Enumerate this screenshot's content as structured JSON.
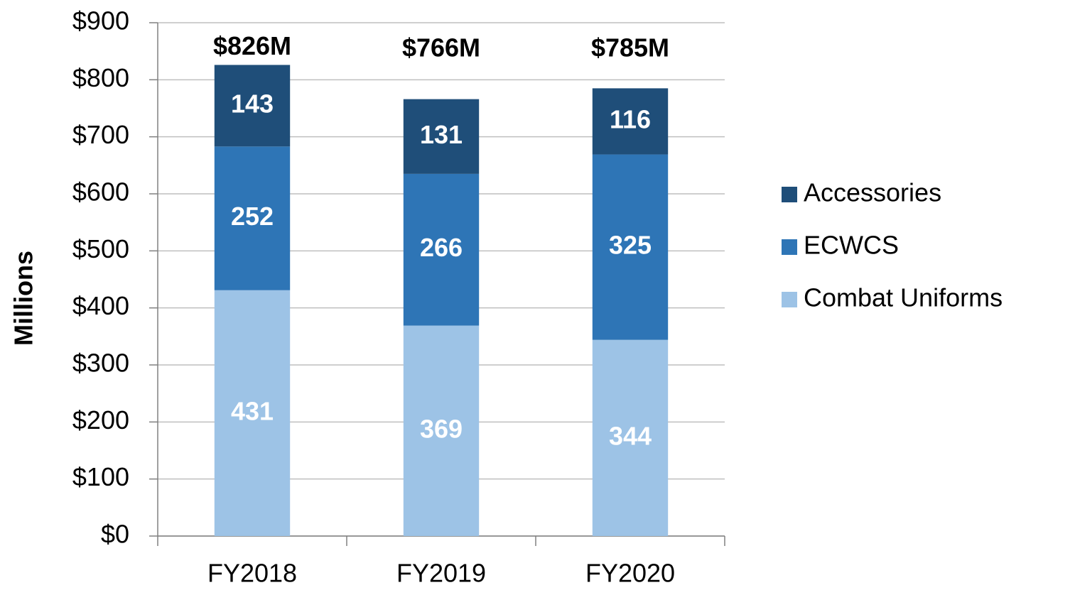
{
  "chart_data": {
    "type": "stacked_bar",
    "categories": [
      "FY2018",
      "FY2019",
      "FY2020"
    ],
    "series": [
      {
        "name": "Combat Uniforms",
        "color": "#9dc3e6",
        "values": [
          431,
          369,
          344
        ]
      },
      {
        "name": "ECWCS",
        "color": "#2e75b6",
        "values": [
          252,
          266,
          325
        ]
      },
      {
        "name": "Accessories",
        "color": "#1f4e79",
        "values": [
          143,
          131,
          116
        ]
      }
    ],
    "totals": [
      826,
      766,
      785
    ],
    "total_value_labels": [
      "$826M",
      "$766M",
      "$785M"
    ],
    "y_label": "Millions",
    "ylim": [
      0,
      900
    ],
    "yticks": [
      {
        "value": 0,
        "label": "$0"
      },
      {
        "value": 100,
        "label": "$100"
      },
      {
        "value": 200,
        "label": "$200"
      },
      {
        "value": 300,
        "label": "$300"
      },
      {
        "value": 400,
        "label": "$400"
      },
      {
        "value": 500,
        "label": "$500"
      },
      {
        "value": 600,
        "label": "$600"
      },
      {
        "value": 700,
        "label": "$700"
      },
      {
        "value": 800,
        "label": "$800"
      },
      {
        "value": 900,
        "label": "$900"
      }
    ],
    "grid": true,
    "legend": "right"
  }
}
